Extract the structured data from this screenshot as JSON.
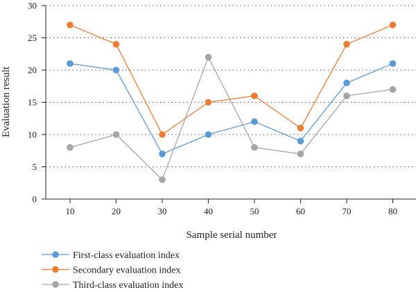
{
  "chart_data": {
    "type": "line",
    "x": [
      10,
      20,
      30,
      40,
      50,
      60,
      70,
      80
    ],
    "x_ticks": [
      "10",
      "20",
      "30",
      "40",
      "50",
      "60",
      "70",
      "80"
    ],
    "y_ticks": [
      "0",
      "5",
      "10",
      "15",
      "20",
      "25",
      "30"
    ],
    "ylim": [
      0,
      30
    ],
    "xlabel": "Sample serial number",
    "ylabel": "Evaluation result",
    "grid": "horizontal dotted",
    "legend_position": "bottom-left",
    "series": [
      {
        "name": "First-class evaluation index",
        "color": "#5b9bd5",
        "values": [
          21,
          20,
          7,
          10,
          12,
          9,
          18,
          21
        ]
      },
      {
        "name": "Secondary evaluation index",
        "color": "#ed7d31",
        "values": [
          27,
          24,
          10,
          15,
          16,
          11,
          24,
          27
        ]
      },
      {
        "name": "Third-class evaluation index",
        "color": "#a5a5a5",
        "values": [
          8,
          10,
          3,
          22,
          8,
          7,
          16,
          17
        ]
      }
    ]
  }
}
